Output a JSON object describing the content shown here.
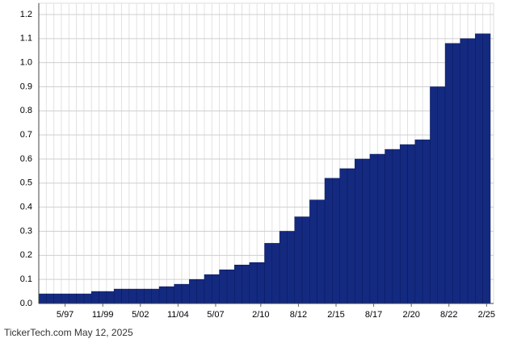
{
  "chart_data": {
    "type": "bar",
    "categories": [
      null,
      null,
      null,
      "5/97",
      null,
      null,
      null,
      null,
      "11/99",
      null,
      null,
      null,
      null,
      "5/02",
      null,
      null,
      null,
      null,
      "11/04",
      null,
      null,
      null,
      null,
      "5/07",
      null,
      null,
      null,
      null,
      null,
      "2/10",
      null,
      null,
      null,
      null,
      "8/12",
      null,
      null,
      null,
      null,
      "2/15",
      null,
      null,
      null,
      null,
      "8/17",
      null,
      null,
      null,
      null,
      "2/20",
      null,
      null,
      null,
      null,
      "8/22",
      null,
      null,
      null,
      null,
      "2/25"
    ],
    "values": [
      0.04,
      0.04,
      0.04,
      0.04,
      0.04,
      0.04,
      0.04,
      0.05,
      0.05,
      0.05,
      0.06,
      0.06,
      0.06,
      0.06,
      0.06,
      0.06,
      0.07,
      0.07,
      0.08,
      0.08,
      0.1,
      0.1,
      0.12,
      0.12,
      0.14,
      0.14,
      0.16,
      0.16,
      0.17,
      0.17,
      0.25,
      0.25,
      0.3,
      0.3,
      0.36,
      0.36,
      0.43,
      0.43,
      0.52,
      0.52,
      0.56,
      0.56,
      0.6,
      0.6,
      0.62,
      0.62,
      0.64,
      0.64,
      0.66,
      0.66,
      0.68,
      0.68,
      0.9,
      0.9,
      1.08,
      1.08,
      1.1,
      1.1,
      1.12,
      1.12
    ],
    "color": "#142a80",
    "ylim": [
      0,
      1.2
    ],
    "yticks": [
      {
        "value": 0,
        "label": "0.0"
      },
      0.1,
      0.2,
      0.3,
      0.4,
      0.5,
      0.6,
      0.7,
      0.8,
      0.9,
      {
        "value": 1,
        "label": "1.0"
      },
      1.1,
      1.2
    ],
    "grid": true,
    "footer": "TickerTech.com  May 12, 2025"
  }
}
